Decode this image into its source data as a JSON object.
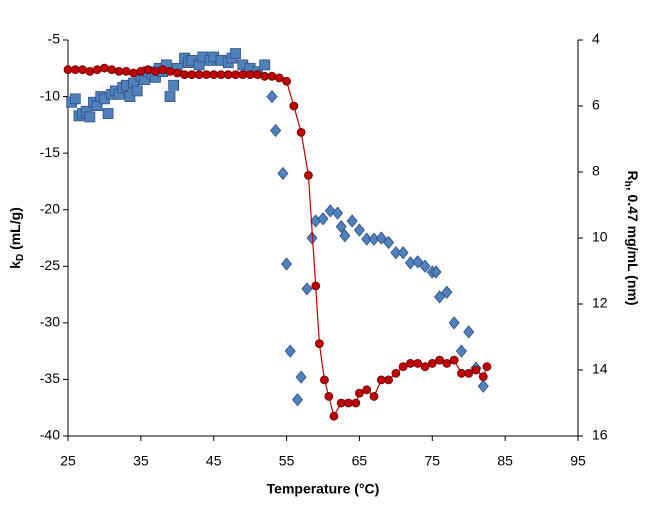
{
  "chart_data": {
    "type": "scatter",
    "xlabel": "Temperature (°C)",
    "ylabel": [
      "k",
      "D",
      " (mL/g)"
    ],
    "y2label": [
      "R",
      "h",
      ", 0.47 mg/mL (nm)"
    ],
    "xlim": [
      25,
      95
    ],
    "xticks": [
      25,
      35,
      45,
      55,
      65,
      75,
      85,
      95
    ],
    "ylim": [
      -40,
      -5
    ],
    "yticks": [
      -5,
      -10,
      -15,
      -20,
      -25,
      -30,
      -35,
      -40
    ],
    "y2lim": [
      4,
      16
    ],
    "y2ticks": [
      4,
      6,
      8,
      10,
      12,
      14,
      16
    ],
    "y2_reversed": true,
    "grid": false,
    "series": [
      {
        "color": "#4f81bd",
        "marker": "square",
        "x": [
          25.5,
          26,
          26.5,
          27,
          27.5,
          28,
          28.5,
          29,
          29.5,
          30,
          30.5,
          31,
          31.5,
          32,
          32.5,
          33,
          33.5,
          34,
          34.5,
          35,
          35.5,
          36,
          36.5,
          37,
          37.5,
          38,
          38.5,
          39,
          39.5,
          40,
          41,
          41.5,
          42,
          43,
          43.5,
          44.5,
          45,
          46,
          47,
          47.5,
          48,
          49,
          50,
          51,
          52
        ],
        "values": [
          -10.5,
          -10.2,
          -11.7,
          -11.5,
          -11.3,
          -11.8,
          -10.5,
          -10.8,
          -10,
          -10.2,
          -11.5,
          -9.8,
          -9.5,
          -9.8,
          -9.2,
          -9,
          -10,
          -8.8,
          -9.5,
          -8.2,
          -8.5,
          -7.8,
          -8,
          -8.3,
          -7.5,
          -7.8,
          -7.2,
          -10,
          -9,
          -7.5,
          -6.6,
          -7,
          -6.8,
          -7.2,
          -6.5,
          -6.8,
          -6.5,
          -6.8,
          -7,
          -6.6,
          -6.2,
          -7.2,
          -7.5,
          -7.8,
          -7.2
        ]
      },
      {
        "color": "#4f81bd",
        "marker": "diamond",
        "x": [
          53,
          53.5,
          54.5,
          55,
          55.5,
          56.5,
          57,
          57.8,
          58.5,
          59,
          60,
          61,
          62,
          62.5,
          63,
          64,
          65,
          66,
          67,
          68,
          69,
          70,
          71,
          72,
          73,
          74,
          75,
          75.5,
          76,
          77,
          78,
          79,
          80,
          81,
          82
        ],
        "values": [
          -10,
          -13,
          -16.8,
          -24.8,
          -32.5,
          -36.8,
          -34.8,
          -27,
          -22.5,
          -21,
          -20.8,
          -20.1,
          -20.3,
          -21.5,
          -22.3,
          -21,
          -21.8,
          -22.6,
          -22.6,
          -22.5,
          -22.9,
          -23.8,
          -23.8,
          -24.7,
          -24.6,
          -25,
          -25.5,
          -25.5,
          -27.7,
          -27.3,
          -30,
          -32.5,
          -30.8,
          -34,
          -35.6
        ]
      },
      {
        "color": "#c00000",
        "marker": "circle",
        "line": true,
        "axis": "y2",
        "x": [
          25,
          26,
          27,
          28,
          29,
          30,
          31,
          32,
          33,
          34,
          35,
          36,
          37,
          38,
          39,
          40,
          41,
          42,
          43,
          44,
          45,
          46,
          47,
          48,
          49,
          50,
          51,
          52,
          53,
          54,
          55,
          56,
          57,
          58,
          59,
          59.5,
          60.2,
          60.8,
          61.5,
          62.5,
          63.5,
          64.5,
          65,
          66,
          67,
          68,
          69,
          70,
          71,
          72,
          73,
          74,
          75,
          76,
          77,
          78,
          79,
          80,
          81,
          82,
          82.5
        ],
        "values": [
          4.9,
          4.9,
          4.9,
          4.95,
          4.9,
          4.85,
          4.9,
          4.95,
          4.95,
          5,
          4.95,
          4.9,
          4.95,
          4.9,
          4.95,
          5,
          5.05,
          5.05,
          5.05,
          5.05,
          5.05,
          5.05,
          5.05,
          5.05,
          5.05,
          5.05,
          5.05,
          5.1,
          5.1,
          5.15,
          5.25,
          6,
          6.8,
          8.1,
          11.45,
          13.2,
          14.3,
          14.8,
          15.4,
          15,
          15,
          15,
          14.7,
          14.6,
          14.8,
          14.3,
          14.3,
          14.1,
          13.9,
          13.8,
          13.8,
          13.9,
          13.8,
          13.7,
          13.8,
          13.7,
          14.1,
          14.1,
          14,
          14.2,
          13.9
        ]
      }
    ]
  }
}
